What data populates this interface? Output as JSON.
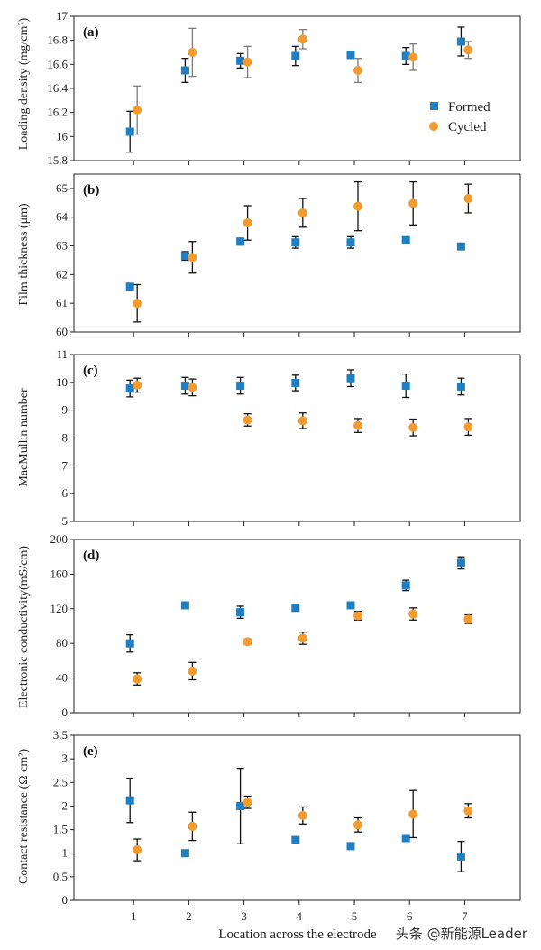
{
  "colors": {
    "formed": "#1f7fc4",
    "cycled": "#f59a2c",
    "errorbar_formed": "#111111",
    "errorbar_cycled": "#7a7a7a"
  },
  "legend": {
    "formed": "Formed",
    "cycled": "Cycled"
  },
  "xlabel": "Location across the electrode",
  "watermark": "头条 @新能源Leader",
  "x_ticks": [
    "1",
    "2",
    "3",
    "4",
    "5",
    "6",
    "7"
  ],
  "chart_data": [
    {
      "type": "scatter",
      "panel_label": "(a)",
      "ylabel": "Loading density (mg/cm²)",
      "ylim": [
        15.8,
        17
      ],
      "yticks": [
        15.8,
        16,
        16.2,
        16.4,
        16.6,
        16.8,
        17
      ],
      "ytick_labels": [
        "15.8",
        "16",
        "16.2",
        "16.4",
        "16.6",
        "16.8",
        "17"
      ],
      "legend_shown": true,
      "series": [
        {
          "name": "Formed",
          "x": [
            1,
            2,
            3,
            4,
            5,
            6,
            7
          ],
          "values": [
            16.04,
            16.55,
            16.63,
            16.67,
            16.68,
            16.67,
            16.79
          ],
          "errors": [
            0.17,
            0.1,
            0.06,
            0.08,
            0.03,
            0.07,
            0.12
          ]
        },
        {
          "name": "Cycled",
          "x": [
            1,
            2,
            3,
            4,
            5,
            6,
            7
          ],
          "values": [
            16.22,
            16.7,
            16.62,
            16.81,
            16.55,
            16.66,
            16.72
          ],
          "errors": [
            0.2,
            0.2,
            0.13,
            0.08,
            0.1,
            0.11,
            0.07
          ]
        }
      ]
    },
    {
      "type": "scatter",
      "panel_label": "(b)",
      "ylabel": "Film thickness (μm)",
      "ylim": [
        60,
        65.5
      ],
      "yticks": [
        60,
        61,
        62,
        63,
        64,
        65
      ],
      "ytick_labels": [
        "60",
        "61",
        "62",
        "63",
        "64",
        "65"
      ],
      "series": [
        {
          "name": "Formed",
          "x": [
            1,
            2,
            3,
            4,
            5,
            6,
            7
          ],
          "values": [
            61.58,
            62.65,
            63.15,
            63.12,
            63.12,
            63.2,
            62.98
          ],
          "errors": [
            0,
            0.15,
            0.12,
            0.2,
            0.2,
            0,
            0
          ]
        },
        {
          "name": "Cycled",
          "x": [
            1,
            2,
            3,
            4,
            5,
            6,
            7
          ],
          "values": [
            61.0,
            62.6,
            63.8,
            64.15,
            64.38,
            64.48,
            64.65
          ],
          "errors": [
            0.65,
            0.55,
            0.6,
            0.5,
            0.85,
            0.75,
            0.5
          ]
        }
      ]
    },
    {
      "type": "scatter",
      "panel_label": "(c)",
      "ylabel": "MacMullin number",
      "ylim": [
        5,
        11
      ],
      "yticks": [
        5,
        6,
        7,
        8,
        9,
        10,
        11
      ],
      "ytick_labels": [
        "5",
        "6",
        "7",
        "8",
        "9",
        "10",
        "11"
      ],
      "series": [
        {
          "name": "Formed",
          "x": [
            1,
            2,
            3,
            4,
            5,
            6,
            7
          ],
          "values": [
            9.78,
            9.88,
            9.88,
            9.98,
            10.15,
            9.88,
            9.85
          ],
          "errors": [
            0.3,
            0.3,
            0.3,
            0.28,
            0.3,
            0.42,
            0.3
          ]
        },
        {
          "name": "Cycled",
          "x": [
            1,
            2,
            3,
            4,
            5,
            6,
            7
          ],
          "values": [
            9.9,
            9.82,
            8.65,
            8.62,
            8.45,
            8.38,
            8.4
          ],
          "errors": [
            0.25,
            0.3,
            0.22,
            0.28,
            0.25,
            0.3,
            0.3
          ]
        }
      ]
    },
    {
      "type": "scatter",
      "panel_label": "(d)",
      "ylabel": "Electronic conductivity(mS/cm)",
      "ylim": [
        0,
        200
      ],
      "yticks": [
        0,
        40,
        80,
        120,
        160,
        200
      ],
      "ytick_labels": [
        "0",
        "40",
        "80",
        "120",
        "160",
        "200"
      ],
      "series": [
        {
          "name": "Formed",
          "x": [
            1,
            2,
            3,
            4,
            5,
            6,
            7
          ],
          "values": [
            80,
            124,
            116,
            121,
            124,
            147,
            173
          ],
          "errors": [
            10,
            0,
            7,
            0,
            0,
            6,
            7
          ]
        },
        {
          "name": "Cycled",
          "x": [
            1,
            2,
            3,
            4,
            5,
            6,
            7
          ],
          "values": [
            39,
            48,
            82,
            86,
            112,
            114,
            108
          ],
          "errors": [
            7,
            10,
            3,
            7,
            5,
            7,
            5
          ]
        }
      ]
    },
    {
      "type": "scatter",
      "panel_label": "(e)",
      "ylabel": "Contact resistance (Ω cm²)",
      "ylim": [
        0,
        3.5
      ],
      "yticks": [
        0,
        0.5,
        1,
        1.5,
        2,
        2.5,
        3,
        3.5
      ],
      "ytick_labels": [
        "0",
        "0.5",
        "1",
        "1.5",
        "2",
        "2.5",
        "3",
        "3.5"
      ],
      "series": [
        {
          "name": "Formed",
          "x": [
            1,
            2,
            3,
            4,
            5,
            6,
            7
          ],
          "values": [
            2.12,
            1.0,
            2.0,
            1.28,
            1.15,
            1.32,
            0.93
          ],
          "errors": [
            0.47,
            0,
            0.8,
            0,
            0,
            0.06,
            0.32
          ]
        },
        {
          "name": "Cycled",
          "x": [
            1,
            2,
            3,
            4,
            5,
            6,
            7
          ],
          "values": [
            1.07,
            1.57,
            2.08,
            1.8,
            1.6,
            1.83,
            1.9
          ],
          "errors": [
            0.23,
            0.3,
            0.13,
            0.18,
            0.15,
            0.5,
            0.15
          ]
        }
      ]
    }
  ]
}
